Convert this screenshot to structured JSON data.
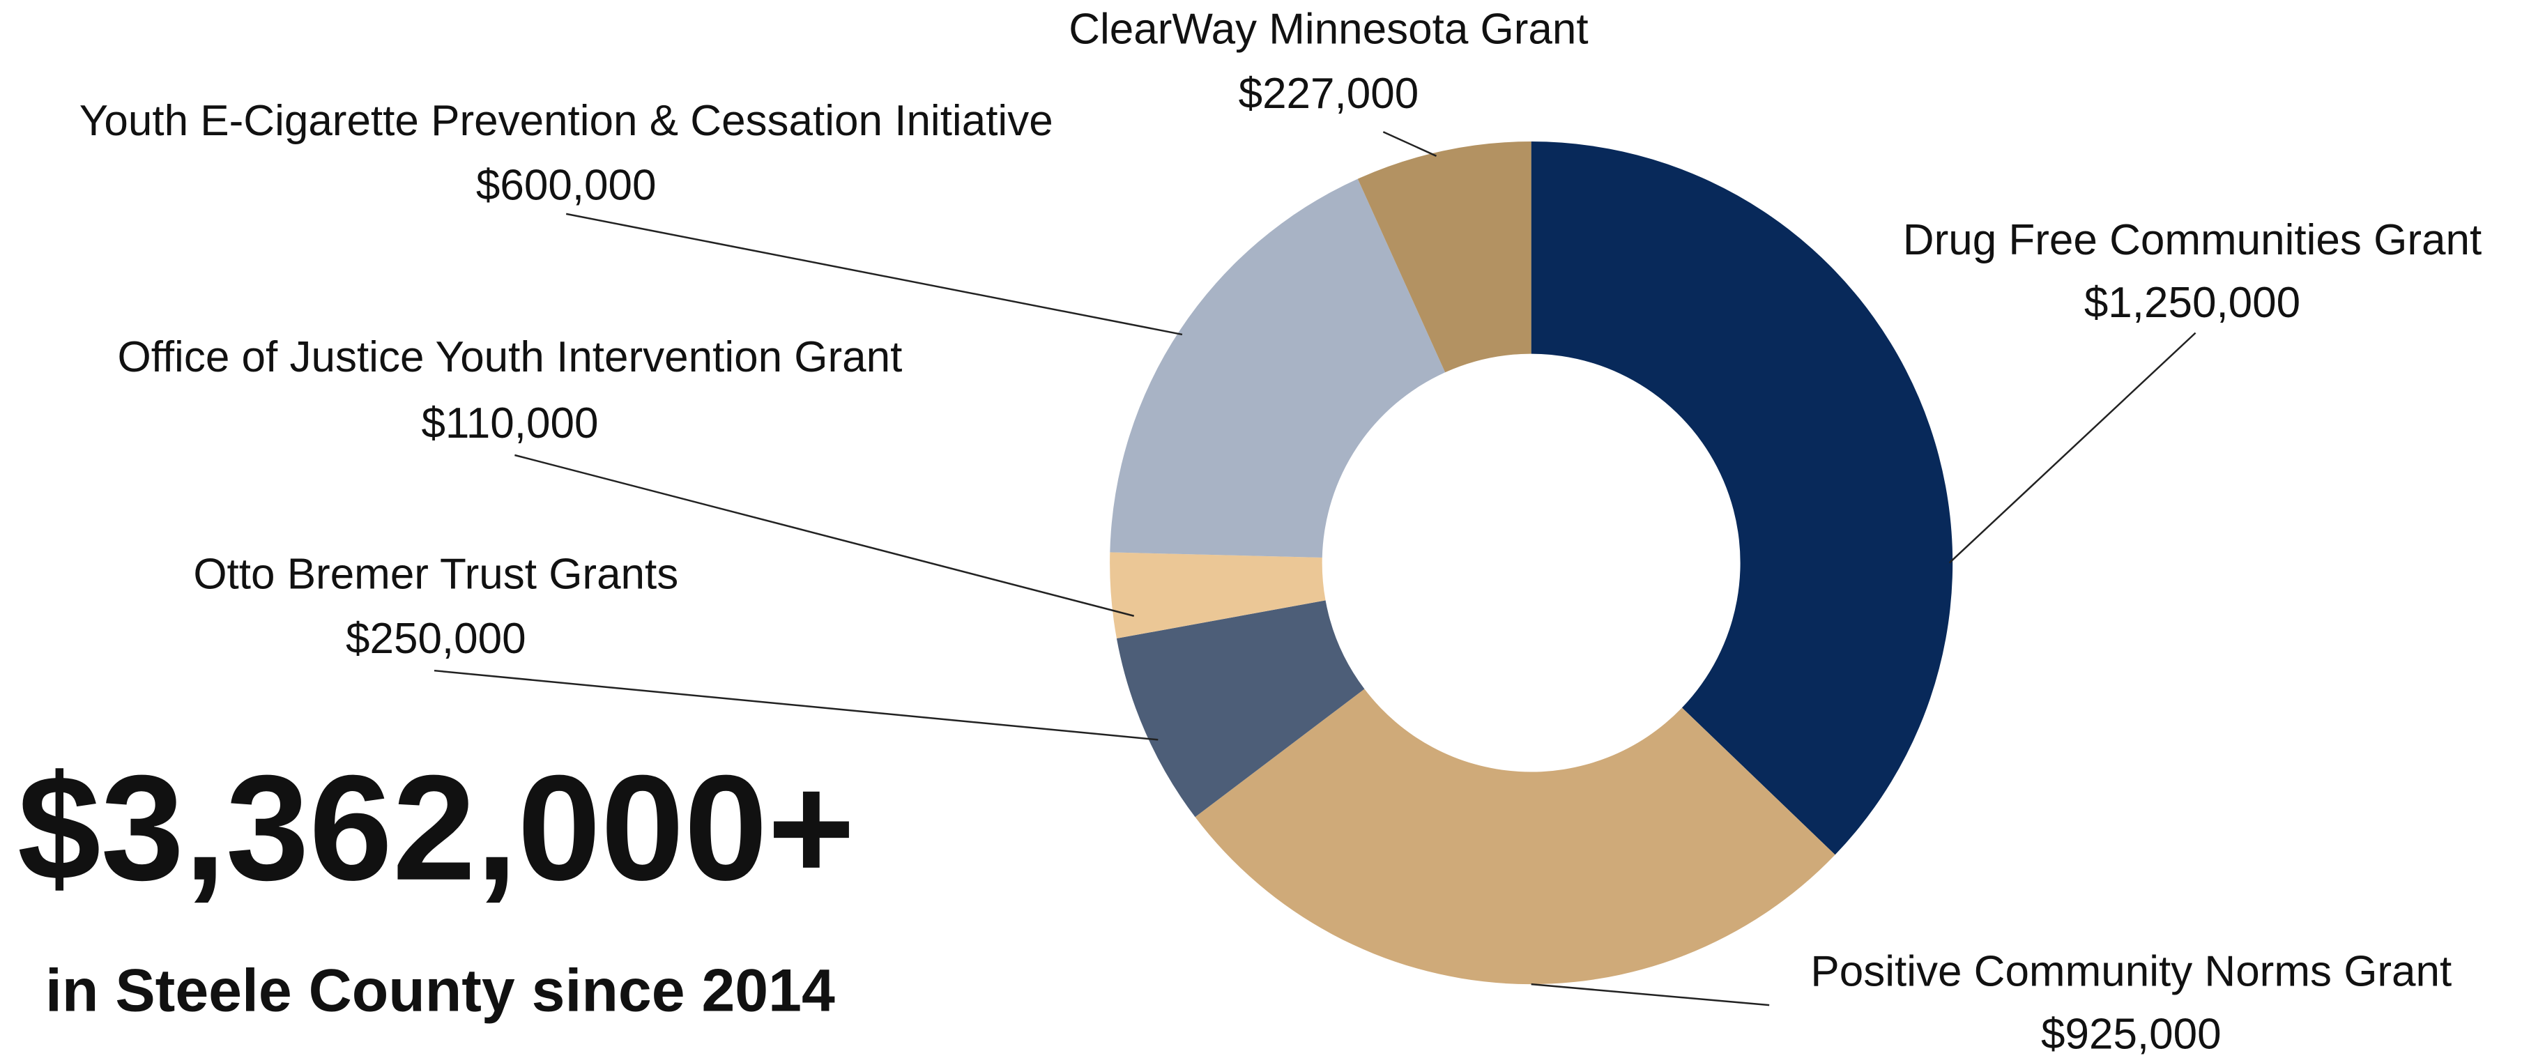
{
  "chart_data": {
    "type": "donut",
    "title": "$3,362,000+",
    "subtitle": "in Steele County since 2014",
    "categories": [
      "Drug Free Communities Grant",
      "Positive Community Norms Grant",
      "Otto Bremer Trust Grants",
      "Office of Justice Youth Intervention Grant",
      "Youth E-Cigarette Prevention & Cessation Initiative",
      "ClearWay Minnesota Grant"
    ],
    "values": [
      1250000,
      925000,
      250000,
      110000,
      600000,
      227000
    ],
    "value_labels": [
      "$1,250,000",
      "$925,000",
      "$250,000",
      "$110,000",
      "$600,000",
      "$227,000"
    ],
    "colors": [
      "#08295a",
      "#cfaa79",
      "#4d5e78",
      "#ebc796",
      "#a8b3c5",
      "#b39262"
    ]
  }
}
